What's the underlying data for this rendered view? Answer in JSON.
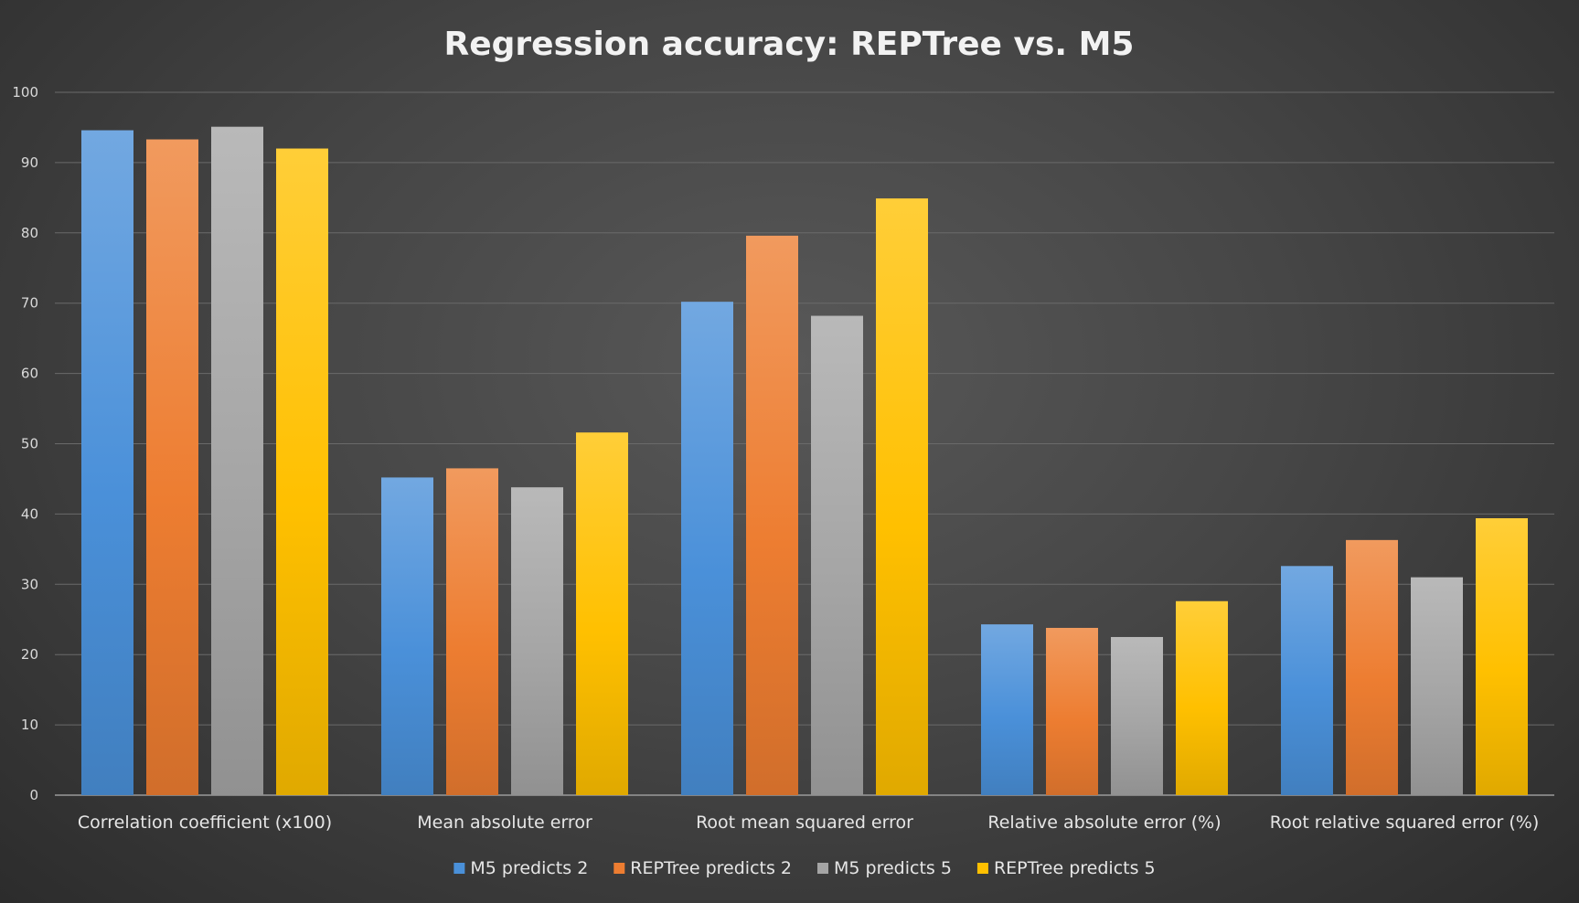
{
  "chart_data": {
    "type": "bar",
    "title": "Regression accuracy: REPTree vs. M5",
    "xlabel": "",
    "ylabel": "",
    "ylim": [
      0,
      100
    ],
    "yticks": [
      0,
      10,
      20,
      30,
      40,
      50,
      60,
      70,
      80,
      90,
      100
    ],
    "grid": true,
    "legend_position": "bottom",
    "categories": [
      "Correlation coefficient (x100)",
      "Mean absolute error",
      "Root mean squared error",
      "Relative absolute error (%)",
      "Root relative squared error (%)"
    ],
    "series": [
      {
        "name": "M5 predicts 2",
        "color": "#4a90d9",
        "values": [
          94.6,
          45.2,
          70.2,
          24.3,
          32.6
        ]
      },
      {
        "name": "REPTree predicts 2",
        "color": "#ed7d31",
        "values": [
          93.3,
          46.5,
          79.6,
          23.8,
          36.3
        ]
      },
      {
        "name": "M5 predicts 5",
        "color": "#a5a5a5",
        "values": [
          95.1,
          43.8,
          68.2,
          22.5,
          31.0
        ]
      },
      {
        "name": "REPTree predicts 5",
        "color": "#ffc000",
        "values": [
          92.0,
          51.6,
          84.9,
          27.6,
          39.4
        ]
      }
    ]
  }
}
